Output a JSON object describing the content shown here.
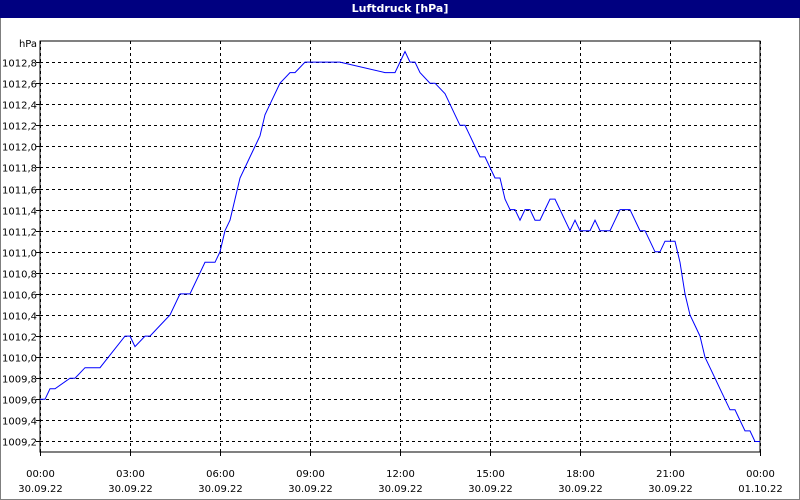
{
  "title": "Luftdruck [hPa]",
  "chart_data": {
    "type": "line",
    "title": "Luftdruck [hPa]",
    "ylabel": "hPa",
    "ylim": [
      1009.1,
      1013.0
    ],
    "yticks": [
      1009.2,
      1009.4,
      1009.6,
      1009.8,
      1010.0,
      1010.2,
      1010.4,
      1010.6,
      1010.8,
      1011.0,
      1011.2,
      1011.4,
      1011.6,
      1011.8,
      1012.0,
      1012.2,
      1012.4,
      1012.6,
      1012.8
    ],
    "ytick_labels": [
      "1009,2",
      "1009,4",
      "1009,6",
      "1009,8",
      "1010,0",
      "1010,2",
      "1010,4",
      "1010,6",
      "1010,8",
      "1011,0",
      "1011,2",
      "1011,4",
      "1011,6",
      "1011,8",
      "1012,0",
      "1012,2",
      "1012,4",
      "1012,6",
      "1012,8"
    ],
    "xlim": [
      "30.09.22 00:00",
      "01.10.22 00:00"
    ],
    "xticks": [
      {
        "time": "00:00",
        "date": "30.09.22"
      },
      {
        "time": "03:00",
        "date": "30.09.22"
      },
      {
        "time": "06:00",
        "date": "30.09.22"
      },
      {
        "time": "09:00",
        "date": "30.09.22"
      },
      {
        "time": "12:00",
        "date": "30.09.22"
      },
      {
        "time": "15:00",
        "date": "30.09.22"
      },
      {
        "time": "18:00",
        "date": "30.09.22"
      },
      {
        "time": "21:00",
        "date": "30.09.22"
      },
      {
        "time": "00:00",
        "date": "01.10.22"
      }
    ],
    "grid": true,
    "line_color": "#0000ff",
    "series": [
      {
        "x": [
          "30.09.22 00:00",
          "30.09.22 00:10",
          "30.09.22 00:20",
          "30.09.22 00:30",
          "30.09.22 01:00",
          "30.09.22 01:10",
          "30.09.22 01:30",
          "30.09.22 02:00",
          "30.09.22 02:50",
          "30.09.22 03:00",
          "30.09.22 03:10",
          "30.09.22 03:30",
          "30.09.22 03:40",
          "30.09.22 04:00",
          "30.09.22 04:20",
          "30.09.22 04:40",
          "30.09.22 05:00",
          "30.09.22 05:20",
          "30.09.22 05:30",
          "30.09.22 05:50",
          "30.09.22 06:00",
          "30.09.22 06:10",
          "30.09.22 06:20",
          "30.09.22 06:30",
          "30.09.22 06:40",
          "30.09.22 06:50",
          "30.09.22 07:00",
          "30.09.22 07:10",
          "30.09.22 07:20",
          "30.09.22 07:30",
          "30.09.22 07:40",
          "30.09.22 07:50",
          "30.09.22 08:00",
          "30.09.22 08:20",
          "30.09.22 08:30",
          "30.09.22 08:50",
          "30.09.22 09:00",
          "30.09.22 09:20",
          "30.09.22 09:30",
          "30.09.22 10:00",
          "30.09.22 11:30",
          "30.09.22 11:40",
          "30.09.22 11:50",
          "30.09.22 12:00",
          "30.09.22 12:10",
          "30.09.22 12:20",
          "30.09.22 12:30",
          "30.09.22 12:40",
          "30.09.22 13:00",
          "30.09.22 13:10",
          "30.09.22 13:30",
          "30.09.22 13:40",
          "30.09.22 13:50",
          "30.09.22 14:00",
          "30.09.22 14:10",
          "30.09.22 14:20",
          "30.09.22 14:30",
          "30.09.22 14:40",
          "30.09.22 14:50",
          "30.09.22 15:00",
          "30.09.22 15:10",
          "30.09.22 15:20",
          "30.09.22 15:30",
          "30.09.22 15:40",
          "30.09.22 15:50",
          "30.09.22 16:00",
          "30.09.22 16:10",
          "30.09.22 16:20",
          "30.09.22 16:30",
          "30.09.22 16:40",
          "30.09.22 16:50",
          "30.09.22 17:00",
          "30.09.22 17:10",
          "30.09.22 17:20",
          "30.09.22 17:30",
          "30.09.22 17:40",
          "30.09.22 17:50",
          "30.09.22 18:00",
          "30.09.22 18:10",
          "30.09.22 18:20",
          "30.09.22 18:30",
          "30.09.22 18:40",
          "30.09.22 18:50",
          "30.09.22 19:00",
          "30.09.22 19:10",
          "30.09.22 19:20",
          "30.09.22 19:30",
          "30.09.22 19:40",
          "30.09.22 19:50",
          "30.09.22 20:00",
          "30.09.22 20:10",
          "30.09.22 20:20",
          "30.09.22 20:30",
          "30.09.22 20:40",
          "30.09.22 20:50",
          "30.09.22 21:00",
          "30.09.22 21:10",
          "30.09.22 21:20",
          "30.09.22 21:30",
          "30.09.22 21:40",
          "30.09.22 21:50",
          "30.09.22 22:00",
          "30.09.22 22:10",
          "30.09.22 22:20",
          "30.09.22 22:30",
          "30.09.22 22:40",
          "30.09.22 22:50",
          "30.09.22 23:00",
          "30.09.22 23:10",
          "30.09.22 23:20",
          "30.09.22 23:30",
          "30.09.22 23:40",
          "30.09.22 23:50",
          "01.10.22 00:00"
        ],
        "values": [
          1009.6,
          1009.6,
          1009.7,
          1009.7,
          1009.8,
          1009.8,
          1009.9,
          1009.9,
          1010.2,
          1010.2,
          1010.1,
          1010.2,
          1010.2,
          1010.3,
          1010.4,
          1010.6,
          1010.6,
          1010.8,
          1010.9,
          1010.9,
          1011.0,
          1011.2,
          1011.3,
          1011.5,
          1011.7,
          1011.8,
          1011.9,
          1012.0,
          1012.1,
          1012.3,
          1012.4,
          1012.5,
          1012.6,
          1012.7,
          1012.7,
          1012.8,
          1012.8,
          1012.8,
          1012.8,
          1012.8,
          1012.7,
          1012.7,
          1012.7,
          1012.8,
          1012.9,
          1012.8,
          1012.8,
          1012.7,
          1012.6,
          1012.6,
          1012.5,
          1012.4,
          1012.3,
          1012.2,
          1012.2,
          1012.1,
          1012.0,
          1011.9,
          1011.9,
          1011.8,
          1011.7,
          1011.7,
          1011.5,
          1011.4,
          1011.4,
          1011.3,
          1011.4,
          1011.4,
          1011.3,
          1011.3,
          1011.4,
          1011.5,
          1011.5,
          1011.4,
          1011.3,
          1011.2,
          1011.3,
          1011.2,
          1011.2,
          1011.2,
          1011.3,
          1011.2,
          1011.2,
          1011.2,
          1011.3,
          1011.4,
          1011.4,
          1011.4,
          1011.3,
          1011.2,
          1011.2,
          1011.1,
          1011.0,
          1011.0,
          1011.1,
          1011.1,
          1011.1,
          1010.9,
          1010.6,
          1010.4,
          1010.3,
          1010.2,
          1010.0,
          1009.9,
          1009.8,
          1009.7,
          1009.6,
          1009.5,
          1009.5,
          1009.4,
          1009.3,
          1009.3,
          1009.2,
          1009.2
        ]
      }
    ]
  }
}
